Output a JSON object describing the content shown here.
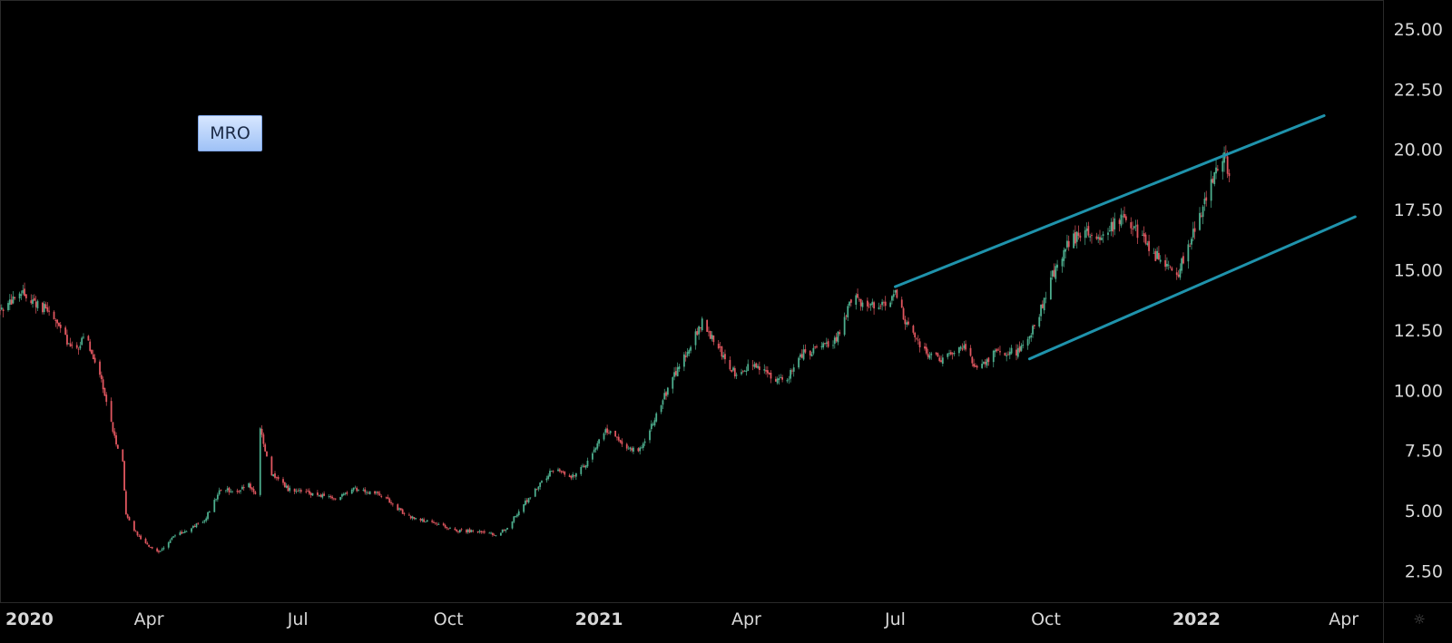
{
  "symbol": "MRO",
  "settings_icon": "sun-gear-icon",
  "colors": {
    "background": "#000000",
    "up": "#4dae8e",
    "down": "#e0565f",
    "trendline": "#1f93ac",
    "axis_text": "#d8d8d8",
    "border": "#2a2a2a"
  },
  "chart_data": {
    "type": "candlestick",
    "title": "",
    "xlabel": "",
    "ylabel": "",
    "x_range": [
      "2020-01-01",
      "2022-04-25"
    ],
    "y_range": [
      1.2,
      26.2
    ],
    "y_ticks": [
      "2.50",
      "5.00",
      "7.50",
      "10.00",
      "12.50",
      "15.00",
      "17.50",
      "20.00",
      "22.50",
      "25.00"
    ],
    "x_ticks": [
      {
        "label": "2020",
        "date": "2020-01-01",
        "bold": true
      },
      {
        "label": "Apr",
        "date": "2020-04-01",
        "bold": false
      },
      {
        "label": "Jul",
        "date": "2020-07-01",
        "bold": false
      },
      {
        "label": "Oct",
        "date": "2020-10-01",
        "bold": false
      },
      {
        "label": "2021",
        "date": "2021-01-01",
        "bold": true
      },
      {
        "label": "Apr",
        "date": "2021-04-01",
        "bold": false
      },
      {
        "label": "Jul",
        "date": "2021-07-01",
        "bold": false
      },
      {
        "label": "Oct",
        "date": "2021-10-01",
        "bold": false
      },
      {
        "label": "2022",
        "date": "2022-01-01",
        "bold": true
      },
      {
        "label": "Apr",
        "date": "2022-04-01",
        "bold": false
      }
    ],
    "price_path": [
      [
        "2020-01-01",
        13.3
      ],
      [
        "2020-01-15",
        14.0
      ],
      [
        "2020-02-01",
        13.2
      ],
      [
        "2020-02-15",
        11.6
      ],
      [
        "2020-02-22",
        12.2
      ],
      [
        "2020-03-01",
        11.0
      ],
      [
        "2020-03-10",
        8.3
      ],
      [
        "2020-03-16",
        7.0
      ],
      [
        "2020-03-18",
        4.8
      ],
      [
        "2020-03-25",
        4.0
      ],
      [
        "2020-04-01",
        3.5
      ],
      [
        "2020-04-08",
        3.3
      ],
      [
        "2020-04-15",
        3.9
      ],
      [
        "2020-04-25",
        4.2
      ],
      [
        "2020-05-05",
        4.6
      ],
      [
        "2020-05-15",
        5.9
      ],
      [
        "2020-05-25",
        5.8
      ],
      [
        "2020-06-01",
        6.1
      ],
      [
        "2020-06-05",
        5.7
      ],
      [
        "2020-06-08",
        8.3
      ],
      [
        "2020-06-15",
        6.5
      ],
      [
        "2020-06-25",
        5.9
      ],
      [
        "2020-07-10",
        5.7
      ],
      [
        "2020-07-25",
        5.5
      ],
      [
        "2020-08-05",
        5.9
      ],
      [
        "2020-08-20",
        5.7
      ],
      [
        "2020-09-05",
        4.8
      ],
      [
        "2020-09-20",
        4.5
      ],
      [
        "2020-10-05",
        4.2
      ],
      [
        "2020-10-20",
        4.1
      ],
      [
        "2020-10-30",
        4.0
      ],
      [
        "2020-11-06",
        4.3
      ],
      [
        "2020-11-15",
        5.2
      ],
      [
        "2020-11-25",
        6.0
      ],
      [
        "2020-12-05",
        6.8
      ],
      [
        "2020-12-15",
        6.4
      ],
      [
        "2020-12-25",
        7.0
      ],
      [
        "2021-01-05",
        8.4
      ],
      [
        "2021-01-15",
        7.8
      ],
      [
        "2021-01-25",
        7.4
      ],
      [
        "2021-02-05",
        9.0
      ],
      [
        "2021-02-15",
        10.5
      ],
      [
        "2021-02-25",
        11.8
      ],
      [
        "2021-03-05",
        12.8
      ],
      [
        "2021-03-15",
        11.7
      ],
      [
        "2021-03-25",
        10.7
      ],
      [
        "2021-04-05",
        11.1
      ],
      [
        "2021-04-15",
        10.6
      ],
      [
        "2021-04-25",
        10.4
      ],
      [
        "2021-05-05",
        11.5
      ],
      [
        "2021-05-15",
        11.7
      ],
      [
        "2021-05-25",
        12.0
      ],
      [
        "2021-06-05",
        13.8
      ],
      [
        "2021-06-15",
        13.5
      ],
      [
        "2021-06-25",
        13.6
      ],
      [
        "2021-07-01",
        14.0
      ],
      [
        "2021-07-10",
        12.4
      ],
      [
        "2021-07-20",
        11.5
      ],
      [
        "2021-08-01",
        11.3
      ],
      [
        "2021-08-10",
        11.9
      ],
      [
        "2021-08-20",
        10.9
      ],
      [
        "2021-09-01",
        11.6
      ],
      [
        "2021-09-15",
        11.6
      ],
      [
        "2021-09-25",
        12.8
      ],
      [
        "2021-10-05",
        14.8
      ],
      [
        "2021-10-15",
        16.1
      ],
      [
        "2021-10-25",
        16.7
      ],
      [
        "2021-11-05",
        16.4
      ],
      [
        "2021-11-15",
        17.1
      ],
      [
        "2021-11-25",
        16.6
      ],
      [
        "2021-12-05",
        15.7
      ],
      [
        "2021-12-15",
        15.2
      ],
      [
        "2021-12-20",
        14.7
      ],
      [
        "2021-12-28",
        16.2
      ],
      [
        "2022-01-05",
        17.6
      ],
      [
        "2022-01-12",
        18.9
      ],
      [
        "2022-01-18",
        19.8
      ],
      [
        "2022-01-21",
        19.0
      ]
    ],
    "trendlines": [
      {
        "start": [
          "2021-07-01",
          14.3
        ],
        "end": [
          "2022-03-20",
          21.4
        ]
      },
      {
        "start": [
          "2021-09-21",
          11.3
        ],
        "end": [
          "2022-04-08",
          17.2
        ]
      }
    ]
  }
}
